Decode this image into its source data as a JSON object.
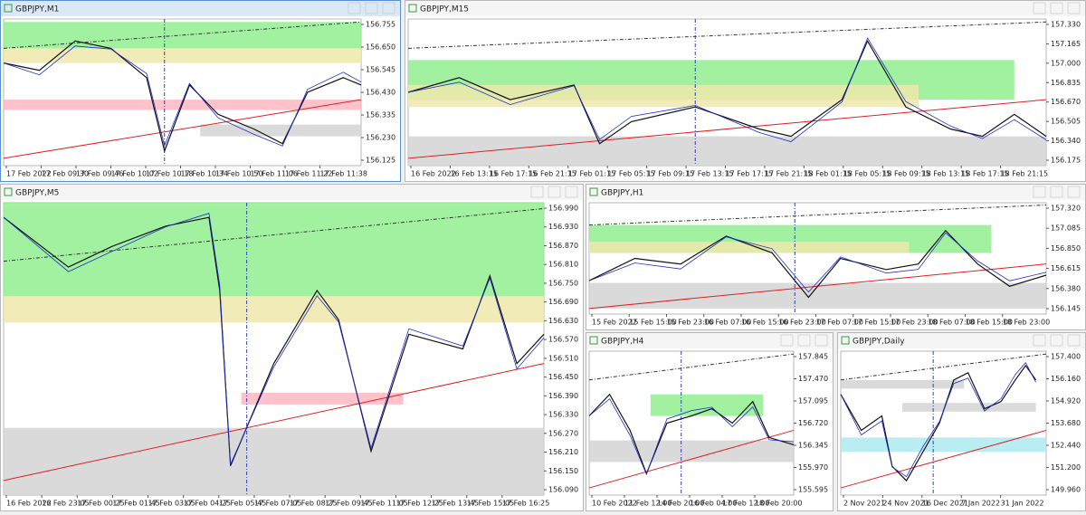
{
  "windows": [
    {
      "title": "GBPJPY,M1",
      "price_labels": [
        "156.755",
        "156.650",
        "156.545",
        "156.430",
        "156.335",
        "156.230",
        "156.125"
      ],
      "time_labels": [
        "17 Feb 2022",
        "17 Feb 09:30",
        "17 Feb 09:46",
        "17 Feb 10:02",
        "17 Feb 10:18",
        "17 Feb 10:34",
        "17 Feb 10:50",
        "17 Feb 11:06",
        "17 Feb 11:22",
        "17 Feb 11:38"
      ]
    },
    {
      "title": "GBPJPY,M15",
      "price_labels": [
        "157.330",
        "157.165",
        "157.000",
        "156.835",
        "156.670",
        "156.505",
        "156.340",
        "156.175"
      ],
      "time_labels": [
        "16 Feb 2022",
        "16 Feb 13:15",
        "16 Feb 17:15",
        "16 Feb 21:15",
        "17 Feb 01:15",
        "17 Feb 05:15",
        "17 Feb 09:15",
        "17 Feb 13:15",
        "17 Feb 17:15",
        "17 Feb 21:15",
        "18 Feb 01:15",
        "18 Feb 05:15",
        "18 Feb 09:15",
        "18 Feb 13:15",
        "18 Feb 17:15",
        "18 Feb 21:15"
      ]
    },
    {
      "title": "GBPJPY,M5",
      "price_labels": [
        "156.990",
        "156.930",
        "156.870",
        "156.810",
        "156.750",
        "156.690",
        "156.630",
        "156.570",
        "156.510",
        "156.450",
        "156.390",
        "156.330",
        "156.270",
        "156.210",
        "156.150",
        "156.090"
      ],
      "time_labels": [
        "16 Feb 2022",
        "16 Feb 23:05",
        "17 Feb 00:25",
        "17 Feb 01:45",
        "17 Feb 03:05",
        "17 Feb 04:25",
        "17 Feb 05:45",
        "17 Feb 07:05",
        "17 Feb 08:25",
        "17 Feb 09:45",
        "17 Feb 11:05",
        "17 Feb 12:25",
        "17 Feb 13:45",
        "17 Feb 15:05",
        "17 Feb 16:25"
      ]
    },
    {
      "title": "GBPJPY,H1",
      "price_labels": [
        "157.320",
        "157.085",
        "156.850",
        "156.615",
        "156.380",
        "156.145"
      ],
      "time_labels": [
        "15 Feb 2022",
        "15 Feb 15:00",
        "15 Feb 23:00",
        "16 Feb 07:00",
        "16 Feb 15:00",
        "16 Feb 23:00",
        "17 Feb 07:00",
        "17 Feb 15:00",
        "17 Feb 23:00",
        "18 Feb 07:00",
        "18 Feb 15:00",
        "18 Feb 23:00"
      ]
    },
    {
      "title": "GBPJPY,H4",
      "price_labels": [
        "157.845",
        "157.470",
        "157.095",
        "156.720",
        "156.345",
        "155.970",
        "155.595"
      ],
      "time_labels": [
        "10 Feb 2022",
        "11 Feb 12:00",
        "14 Feb 20:00",
        "16 Feb 04:00",
        "17 Feb 12:00",
        "18 Feb 20:00"
      ]
    },
    {
      "title": "GBPJPY,Daily",
      "price_labels": [
        "157.400",
        "156.160",
        "154.920",
        "153.680",
        "152.440",
        "151.200",
        "149.960"
      ],
      "time_labels": [
        "2 Nov 2021",
        "24 Nov 2021",
        "16 Dec 2021",
        "7 Jan 2022",
        "31 Jan 2022"
      ]
    }
  ]
}
